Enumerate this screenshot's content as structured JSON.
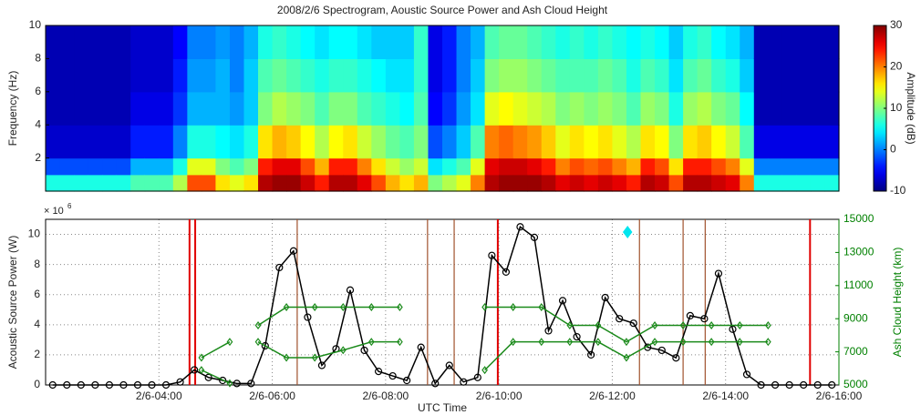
{
  "chart_data": [
    {
      "type": "heatmap",
      "title": "2008/2/6 Spectrogram, Aoustic Source Power and Ash Cloud Height",
      "ylabel": "Frequency (Hz)",
      "xlim": [
        2,
        16
      ],
      "ylim": [
        0,
        10
      ],
      "yticks": [
        2,
        4,
        6,
        8,
        10
      ],
      "f_edges": [
        0,
        1,
        2,
        4,
        6,
        8,
        10
      ],
      "colormap": "jet",
      "clim": [
        -10,
        30
      ],
      "cticks": [
        -10,
        0,
        10,
        20,
        30
      ],
      "colorbar_label": "Amplitude (dB)",
      "z": [
        [
          6,
          -2,
          -7,
          -8,
          -8,
          -8
        ],
        [
          6,
          -2,
          -7,
          -8,
          -8,
          -8
        ],
        [
          6,
          -2,
          -7,
          -8,
          -8,
          -8
        ],
        [
          6,
          -2,
          -7,
          -8,
          -8,
          -8
        ],
        [
          6,
          -2,
          -7,
          -8,
          -8,
          -8
        ],
        [
          6,
          -2,
          -7,
          -8,
          -8,
          -8
        ],
        [
          8,
          2,
          -4,
          -6,
          -7,
          -7
        ],
        [
          8,
          2,
          -4,
          -6,
          -7,
          -7
        ],
        [
          8,
          2,
          -4,
          -6,
          -7,
          -7
        ],
        [
          12,
          6,
          0,
          -3,
          -4,
          -5
        ],
        [
          22,
          14,
          6,
          2,
          1,
          0
        ],
        [
          22,
          14,
          6,
          2,
          1,
          0
        ],
        [
          16,
          10,
          5,
          2,
          2,
          1
        ],
        [
          14,
          8,
          4,
          1,
          0,
          0
        ],
        [
          16,
          10,
          6,
          3,
          3,
          2
        ],
        [
          28,
          24,
          16,
          10,
          8,
          6
        ],
        [
          29,
          26,
          18,
          12,
          9,
          7
        ],
        [
          29,
          26,
          17,
          11,
          8,
          6
        ],
        [
          27,
          22,
          15,
          10,
          7,
          5
        ],
        [
          24,
          18,
          12,
          8,
          6,
          4
        ],
        [
          28,
          24,
          15,
          10,
          7,
          5
        ],
        [
          28,
          24,
          16,
          10,
          7,
          5
        ],
        [
          26,
          20,
          13,
          8,
          6,
          4
        ],
        [
          22,
          16,
          11,
          7,
          5,
          3
        ],
        [
          18,
          13,
          9,
          6,
          4,
          3
        ],
        [
          16,
          11,
          8,
          5,
          4,
          3
        ],
        [
          18,
          13,
          10,
          8,
          7,
          7
        ],
        [
          10,
          4,
          -2,
          -5,
          -6,
          -6
        ],
        [
          12,
          6,
          0,
          -3,
          -4,
          -4
        ],
        [
          14,
          8,
          3,
          1,
          0,
          0
        ],
        [
          20,
          14,
          8,
          4,
          3,
          2
        ],
        [
          28,
          26,
          20,
          14,
          10,
          8
        ],
        [
          29,
          27,
          21,
          15,
          11,
          9
        ],
        [
          29,
          27,
          20,
          14,
          11,
          9
        ],
        [
          29,
          26,
          19,
          13,
          10,
          8
        ],
        [
          28,
          24,
          17,
          12,
          9,
          7
        ],
        [
          26,
          20,
          14,
          10,
          8,
          6
        ],
        [
          27,
          22,
          16,
          11,
          8,
          7
        ],
        [
          26,
          21,
          15,
          10,
          8,
          6
        ],
        [
          27,
          22,
          16,
          11,
          9,
          7
        ],
        [
          26,
          20,
          14,
          10,
          8,
          6
        ],
        [
          24,
          18,
          12,
          8,
          6,
          5
        ],
        [
          28,
          24,
          16,
          11,
          8,
          6
        ],
        [
          27,
          22,
          15,
          10,
          7,
          5
        ],
        [
          22,
          16,
          10,
          6,
          4,
          3
        ],
        [
          28,
          24,
          16,
          11,
          8,
          6
        ],
        [
          28,
          24,
          17,
          12,
          9,
          7
        ],
        [
          27,
          22,
          15,
          10,
          7,
          5
        ],
        [
          26,
          20,
          13,
          9,
          6,
          4
        ],
        [
          20,
          14,
          8,
          5,
          3,
          2
        ],
        [
          6,
          0,
          -6,
          -8,
          -8,
          -8
        ],
        [
          6,
          0,
          -6,
          -8,
          -8,
          -8
        ],
        [
          6,
          0,
          -6,
          -8,
          -8,
          -8
        ],
        [
          6,
          0,
          -6,
          -8,
          -8,
          -8
        ],
        [
          6,
          0,
          -6,
          -8,
          -8,
          -8
        ],
        [
          6,
          0,
          -6,
          -8,
          -8,
          -8
        ]
      ]
    },
    {
      "type": "line",
      "xlabel": "UTC Time",
      "ylabel": "Acoustic Source Power (W)",
      "y_multiplier": {
        "base": "× 10",
        "exponent": "6"
      },
      "y2label": "Ash Cloud Height (km)",
      "grid": true,
      "xlim": [
        2,
        16
      ],
      "xticks": [
        {
          "value": 4,
          "label": "2/6-04:00"
        },
        {
          "value": 6,
          "label": "2/6-06:00"
        },
        {
          "value": 8,
          "label": "2/6-08:00"
        },
        {
          "value": 10,
          "label": "2/6-10:00"
        },
        {
          "value": 12,
          "label": "2/6-12:00"
        },
        {
          "value": 14,
          "label": "2/6-14:00"
        },
        {
          "value": 16,
          "label": "2/6-16:00"
        }
      ],
      "ylim": [
        0,
        11
      ],
      "yticks": [
        0,
        2,
        4,
        6,
        8,
        10
      ],
      "y2lim": [
        5000,
        15000
      ],
      "y2ticks": [
        5000,
        7000,
        9000,
        11000,
        13000,
        15000
      ],
      "y2color": "#008000",
      "series": [
        {
          "color": "#000000",
          "marker": "circle",
          "x": [
            2.125,
            2.375,
            2.625,
            2.875,
            3.125,
            3.375,
            3.625,
            3.875,
            4.125,
            4.375,
            4.625,
            4.875,
            5.125,
            5.375,
            5.625,
            5.875,
            6.125,
            6.375,
            6.625,
            6.875,
            7.125,
            7.375,
            7.625,
            7.875,
            8.125,
            8.375,
            8.625,
            8.875,
            9.125,
            9.375,
            9.625,
            9.875,
            10.125,
            10.375,
            10.625,
            10.875,
            11.125,
            11.375,
            11.625,
            11.875,
            12.125,
            12.375,
            12.625,
            12.875,
            13.125,
            13.375,
            13.625,
            13.875,
            14.125,
            14.375,
            14.625,
            14.875,
            15.125,
            15.375,
            15.625,
            15.875
          ],
          "values": [
            0,
            0,
            0,
            0,
            0,
            0,
            0,
            0,
            0,
            0.2,
            1.0,
            0.5,
            0.3,
            0.1,
            0.1,
            2.6,
            7.8,
            8.9,
            4.5,
            1.3,
            2.4,
            6.3,
            2.3,
            0.9,
            0.6,
            0.3,
            2.5,
            0.1,
            1.3,
            0.2,
            0.5,
            8.6,
            7.5,
            10.5,
            9.8,
            3.6,
            5.6,
            3.2,
            2.0,
            5.8,
            4.4,
            4.1,
            2.5,
            2.3,
            1.8,
            4.6,
            4.4,
            7.4,
            3.7,
            0.7,
            0,
            0,
            0,
            0,
            0,
            0
          ]
        },
        {
          "color": "#1a8a1a",
          "marker": "diamond",
          "axis": "y2",
          "x": [
            4.75,
            5.25,
            5.5,
            5.75,
            6.25,
            6.75,
            7.25,
            7.75,
            8.25,
            9.0,
            9.75,
            10.25,
            10.75,
            11.25,
            11.75,
            12.25,
            12.75,
            13.25,
            13.75,
            14.25,
            14.75
          ],
          "values": [
            6650,
            7600,
            null,
            8600,
            9700,
            9700,
            9700,
            9700,
            9700,
            null,
            9700,
            9700,
            9700,
            8600,
            8600,
            7600,
            8600,
            8600,
            8600,
            8600,
            8600
          ]
        },
        {
          "color": "#1a8a1a",
          "marker": "diamond",
          "axis": "y2",
          "x": [
            4.75,
            5.25,
            5.5,
            5.75,
            6.25,
            6.75,
            7.25,
            7.75,
            8.25,
            9.0,
            9.75,
            10.25,
            10.75,
            11.25,
            11.75,
            12.25,
            12.75,
            13.25,
            13.75,
            14.25,
            14.75
          ],
          "values": [
            5900,
            5100,
            null,
            7600,
            6650,
            6650,
            7100,
            7600,
            7600,
            null,
            5900,
            7600,
            7600,
            7600,
            7600,
            6650,
            7600,
            7600,
            7600,
            7600,
            7600
          ]
        }
      ],
      "vlines": [
        {
          "color": "#e00000",
          "x": [
            4.54,
            4.64,
            9.98,
            15.49
          ]
        },
        {
          "color": "#a0522d",
          "x": [
            6.44,
            8.74,
            9.21,
            12.48,
            13.25,
            13.64
          ]
        }
      ],
      "point": {
        "color": "#00e5ee",
        "marker": "diamond",
        "axis": "y2",
        "x": 12.27,
        "value": 14230
      }
    }
  ]
}
